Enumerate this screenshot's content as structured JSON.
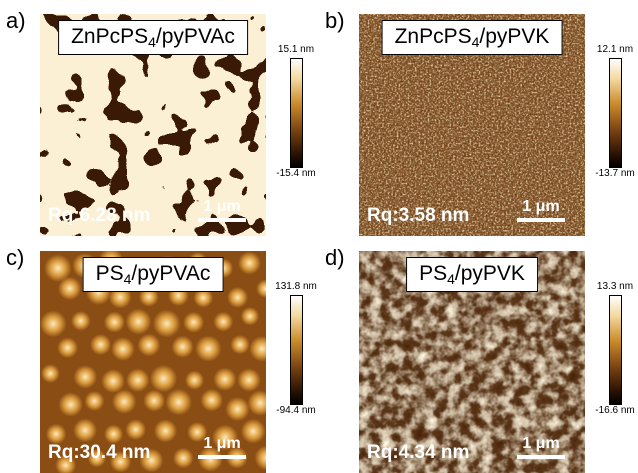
{
  "panels": [
    {
      "letter": "a)",
      "label_main": "ZnPcPS",
      "label_sub": "4",
      "label_rest": "/pyPVAc",
      "rq": "Rq:6.28 nm",
      "scale_label": "1 μm",
      "cbar_max": "15.1 nm",
      "cbar_min": "-15.4 nm"
    },
    {
      "letter": "b)",
      "label_main": "ZnPcPS",
      "label_sub": "4",
      "label_rest": "/pyPVK",
      "rq": "Rq:3.58 nm",
      "scale_label": "1 μm",
      "cbar_max": "12.1 nm",
      "cbar_min": "-13.7 nm"
    },
    {
      "letter": "c)",
      "label_main": "PS",
      "label_sub": "4",
      "label_rest": "/pyPVAc",
      "rq": "Rq:30.4 nm",
      "scale_label": "1 μm",
      "cbar_max": "131.8 nm",
      "cbar_min": "-94.4 nm"
    },
    {
      "letter": "d)",
      "label_main": "PS",
      "label_sub": "4",
      "label_rest": "/pyPVK",
      "rq": "Rq:4.34 nm",
      "scale_label": "1 μm",
      "cbar_max": "13.3 nm",
      "cbar_min": "-16.6 nm"
    }
  ],
  "colors": {
    "afm_dark": "#2a1204",
    "afm_mid": "#a8641c",
    "afm_light": "#f7dfa8",
    "label_white": "#ffffff"
  }
}
